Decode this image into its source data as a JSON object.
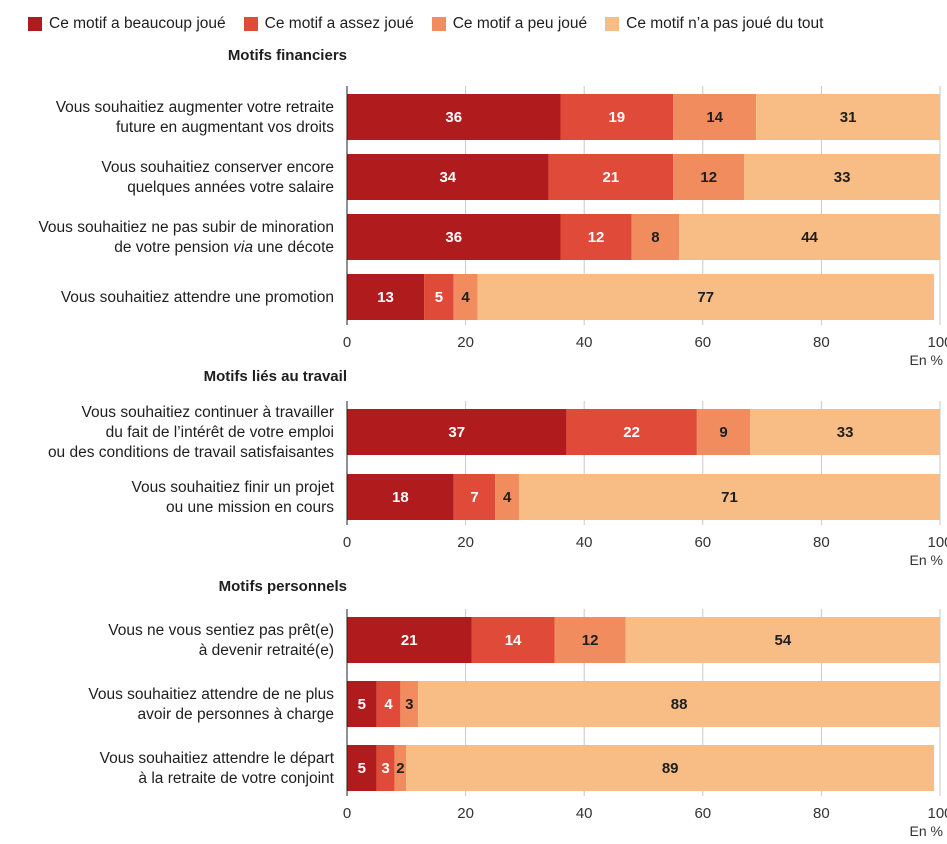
{
  "legend": {
    "items": [
      {
        "label": "Ce motif a beaucoup joué",
        "color": "#b01b1e"
      },
      {
        "label": "Ce motif a assez joué",
        "color": "#e04a38"
      },
      {
        "label": "Ce motif a peu joué",
        "color": "#f08c5e"
      },
      {
        "label": "Ce motif n’a pas joué du tout",
        "color": "#f8bd85"
      }
    ]
  },
  "chart_data": {
    "type": "bar",
    "orientation": "horizontal",
    "stacked": true,
    "xlim": [
      0,
      100
    ],
    "xticks": [
      0,
      20,
      40,
      60,
      80,
      100
    ],
    "unit": "En %",
    "grid": true,
    "legend_position": "top",
    "series_names": [
      "Ce motif a beaucoup joué",
      "Ce motif a assez joué",
      "Ce motif a peu joué",
      "Ce motif n’a pas joué du tout"
    ],
    "panels": [
      {
        "title": "Motifs financiers",
        "categories": [
          {
            "lines": [
              "Vous souhaitiez augmenter votre retraite",
              "future en augmentant vos droits"
            ],
            "values": [
              36,
              19,
              14,
              31
            ]
          },
          {
            "lines": [
              "Vous souhaitiez conserver encore",
              "quelques années votre salaire"
            ],
            "values": [
              34,
              21,
              12,
              33
            ]
          },
          {
            "lines": [
              "Vous souhaitiez ne pas subir de minoration",
              "de votre pension |via| une décote"
            ],
            "values": [
              36,
              12,
              8,
              44
            ]
          },
          {
            "lines": [
              "Vous souhaitiez attendre une promotion"
            ],
            "values": [
              13,
              5,
              4,
              77
            ]
          }
        ]
      },
      {
        "title": "Motifs liés au travail",
        "categories": [
          {
            "lines": [
              "Vous souhaitiez continuer à travailler",
              "du fait de l’intérêt de votre emploi",
              "ou des conditions de travail satisfaisantes"
            ],
            "values": [
              37,
              22,
              9,
              33
            ]
          },
          {
            "lines": [
              "Vous souhaitiez finir un projet",
              "ou une mission en cours"
            ],
            "values": [
              18,
              7,
              4,
              71
            ]
          }
        ]
      },
      {
        "title": "Motifs personnels",
        "categories": [
          {
            "lines": [
              "Vous ne vous sentiez pas prêt(e)",
              "à devenir retraité(e)"
            ],
            "values": [
              21,
              14,
              12,
              54
            ]
          },
          {
            "lines": [
              "Vous souhaitiez attendre de ne plus",
              "avoir de personnes à charge"
            ],
            "values": [
              5,
              4,
              3,
              88
            ]
          },
          {
            "lines": [
              "Vous souhaitiez attendre le départ",
              "à la retraite de votre conjoint"
            ],
            "values": [
              5,
              3,
              2,
              89
            ]
          }
        ]
      }
    ]
  }
}
